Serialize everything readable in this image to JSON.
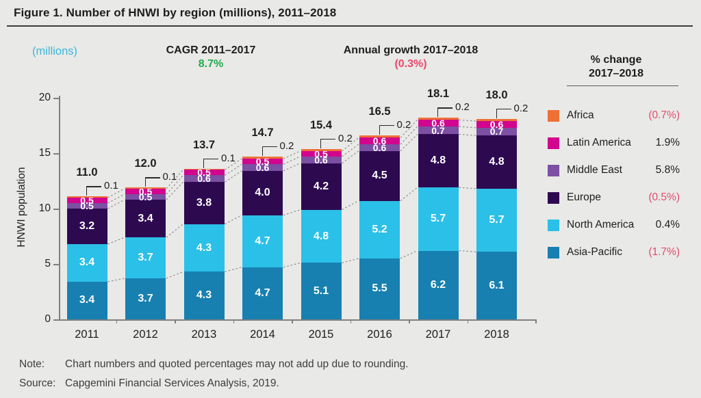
{
  "title": "Figure 1. Number of HNWI by region (millions), 2011–2018",
  "header": {
    "units_label": "(millions)",
    "cagr_label": "CAGR 2011–2017",
    "cagr_value": "8.7%",
    "growth_label": "Annual growth 2017–2018",
    "growth_value": "(0.3%)"
  },
  "legend": {
    "title_line1": "% change",
    "title_line2": "2017–2018",
    "items": [
      {
        "label": "Africa",
        "value": "(0.7%)",
        "negative": true,
        "color": "#ee7036"
      },
      {
        "label": "Latin America",
        "value": "1.9%",
        "negative": false,
        "color": "#d1058e"
      },
      {
        "label": "Middle East",
        "value": "5.8%",
        "negative": false,
        "color": "#7c50a2"
      },
      {
        "label": "Europe",
        "value": "(0.5%)",
        "negative": true,
        "color": "#2d0a50"
      },
      {
        "label": "North America",
        "value": "0.4%",
        "negative": false,
        "color": "#2bc0e7"
      },
      {
        "label": "Asia-Pacific",
        "value": "(1.7%)",
        "negative": true,
        "color": "#1780b0"
      }
    ]
  },
  "chart_data": {
    "type": "bar",
    "stacked": true,
    "title": "Number of HNWI by region (millions), 2011–2018",
    "xlabel": "",
    "ylabel": "HNWI population",
    "ylim": [
      0,
      20
    ],
    "yticks": [
      0,
      5,
      10,
      15,
      20
    ],
    "grid": false,
    "legend_position": "right",
    "categories": [
      "2011",
      "2012",
      "2013",
      "2014",
      "2015",
      "2016",
      "2017",
      "2018"
    ],
    "series": [
      {
        "name": "Asia-Pacific",
        "color": "#1780b0",
        "values": [
          3.4,
          3.7,
          4.3,
          4.7,
          5.1,
          5.5,
          6.2,
          6.1
        ]
      },
      {
        "name": "North America",
        "color": "#2bc0e7",
        "values": [
          3.4,
          3.7,
          4.3,
          4.7,
          4.8,
          5.2,
          5.7,
          5.7
        ]
      },
      {
        "name": "Europe",
        "color": "#2d0a50",
        "values": [
          3.2,
          3.4,
          3.8,
          4.0,
          4.2,
          4.5,
          4.8,
          4.8
        ]
      },
      {
        "name": "Middle East",
        "color": "#7c50a2",
        "values": [
          0.5,
          0.5,
          0.6,
          0.6,
          0.6,
          0.6,
          0.7,
          0.7
        ]
      },
      {
        "name": "Latin America",
        "color": "#d1058e",
        "values": [
          0.5,
          0.5,
          0.5,
          0.5,
          0.5,
          0.6,
          0.6,
          0.6
        ]
      },
      {
        "name": "Africa",
        "color": "#ee7036",
        "values": [
          0.1,
          0.1,
          0.1,
          0.2,
          0.2,
          0.2,
          0.2,
          0.2
        ]
      }
    ],
    "totals": [
      "11.0",
      "12.0",
      "13.7",
      "14.7",
      "15.4",
      "16.5",
      "18.1",
      "18.0"
    ]
  },
  "footer": {
    "note_label": "Note:",
    "note_text": "Chart numbers and quoted percentages may not add up due to rounding.",
    "source_label": "Source:",
    "source_text": "Capgemini Financial Services Analysis, 2019."
  }
}
